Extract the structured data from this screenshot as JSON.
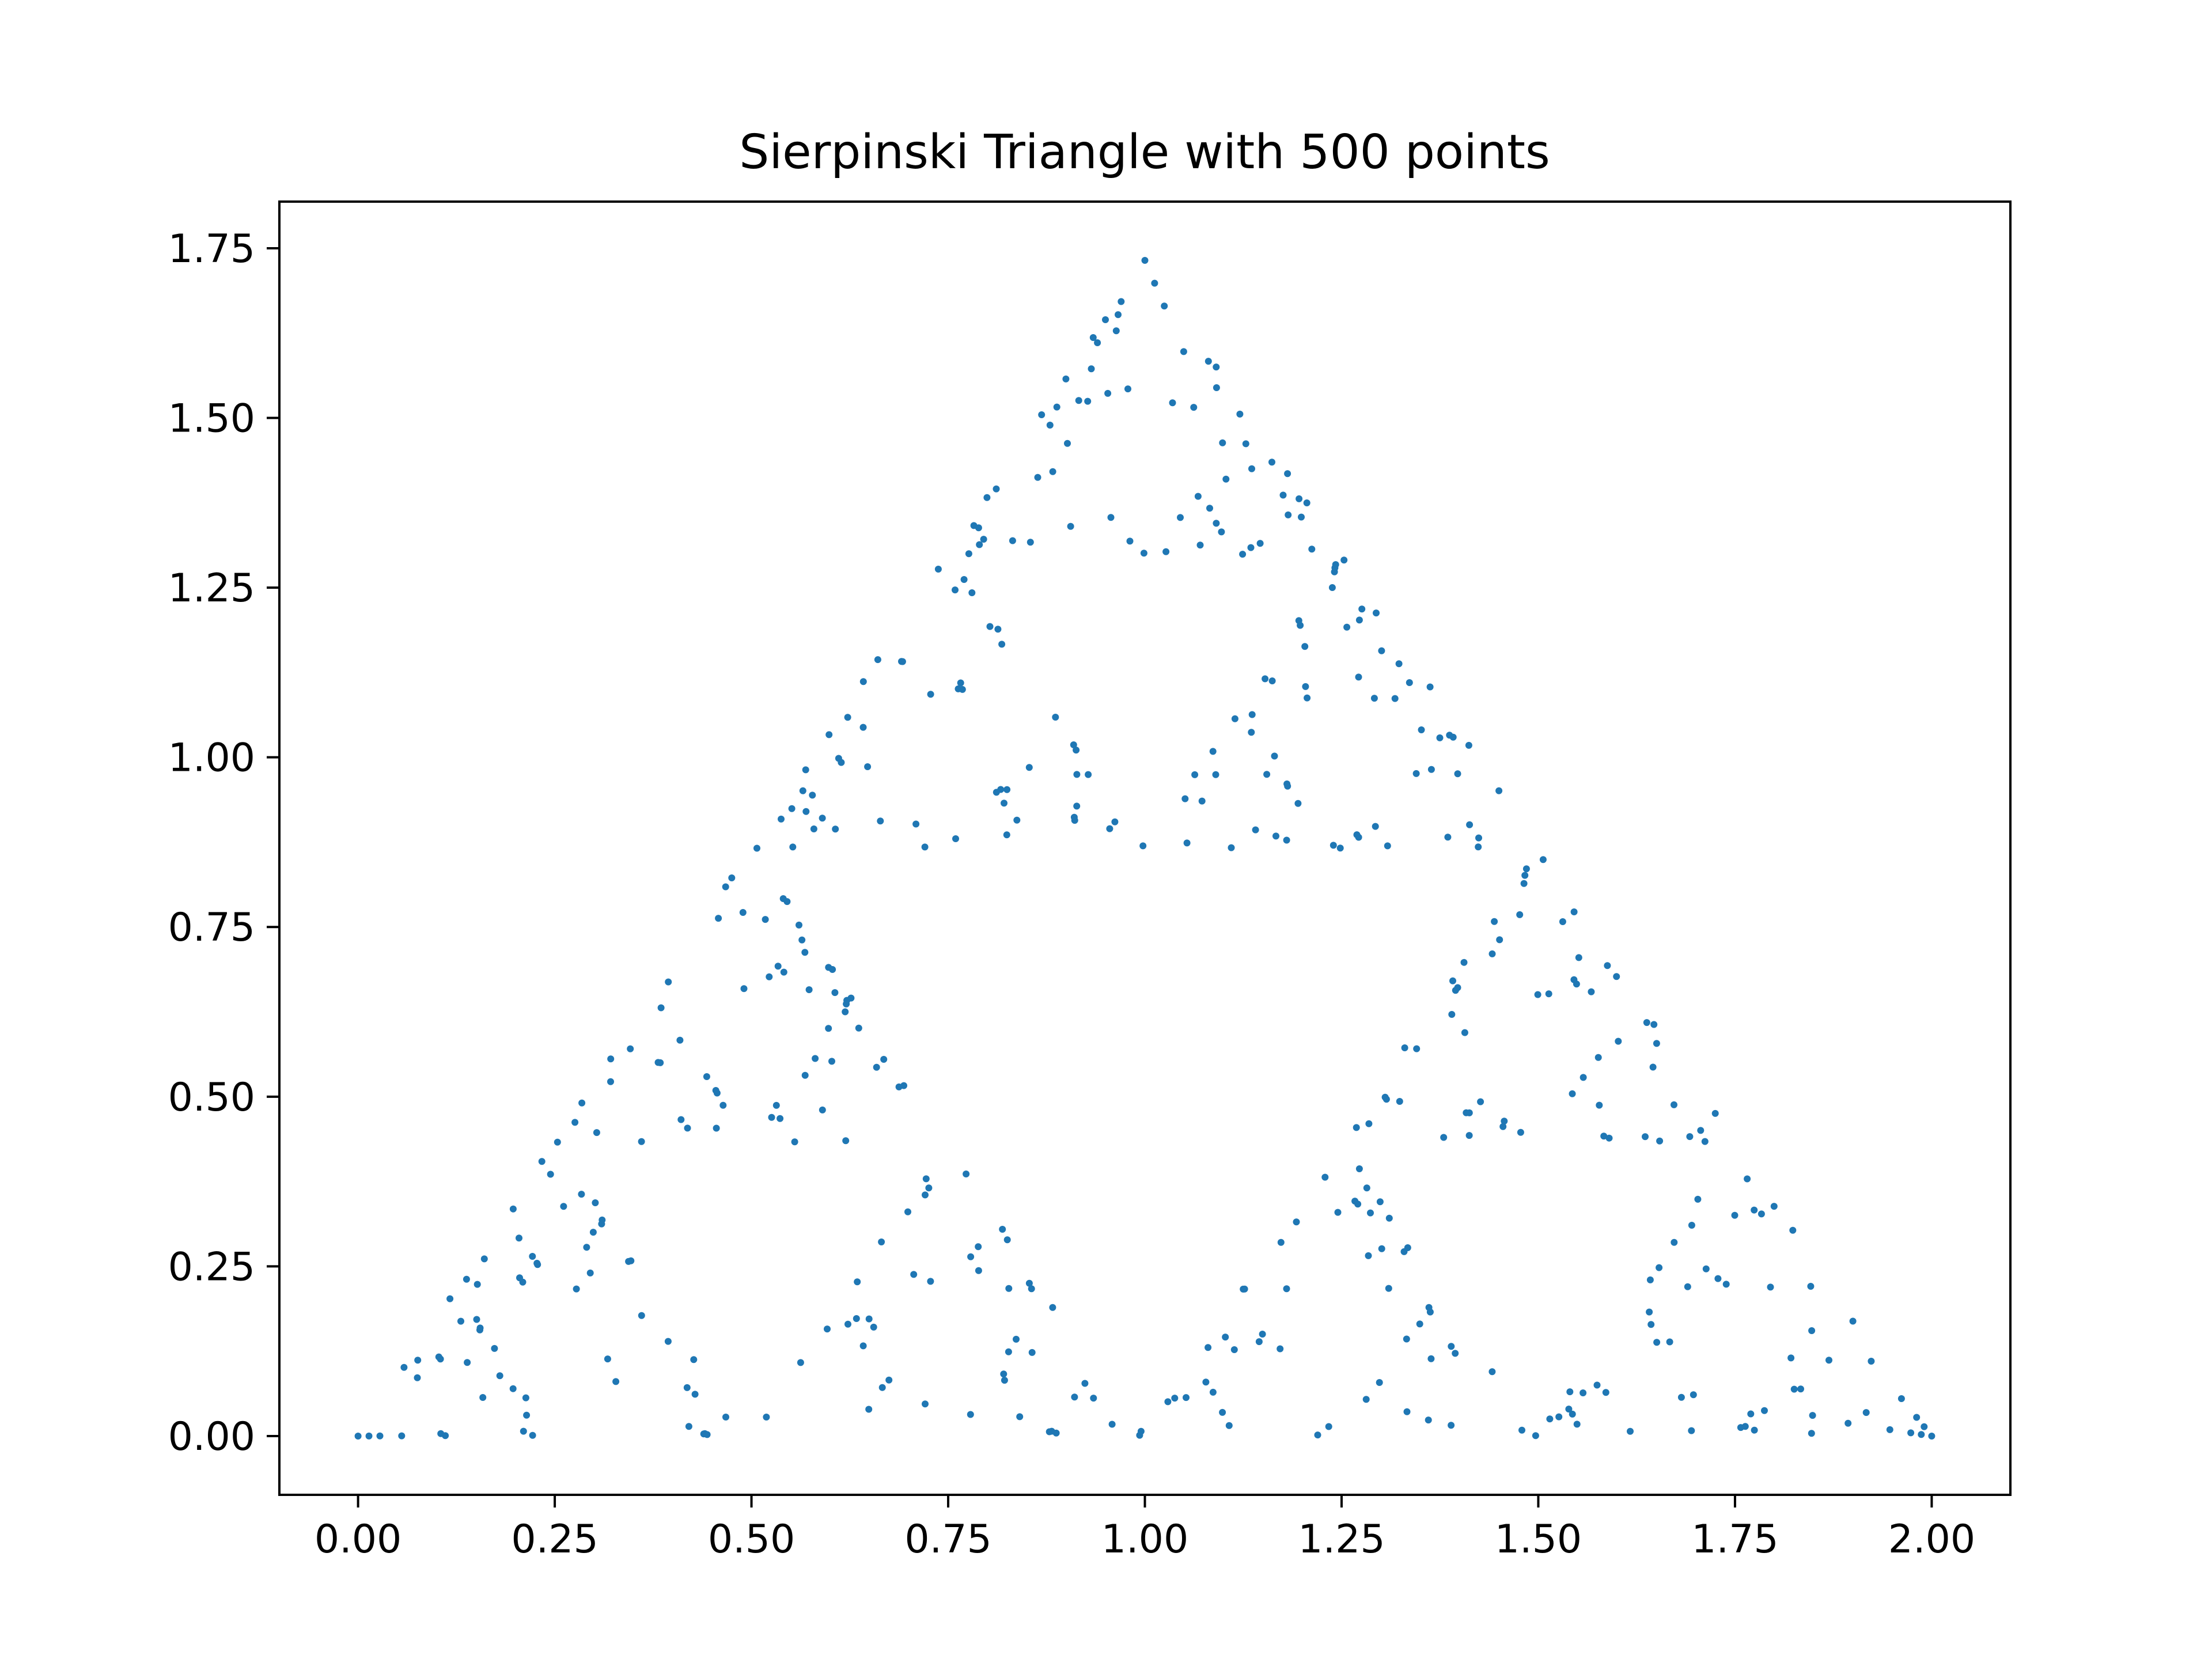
{
  "chart_data": {
    "type": "scatter",
    "title": "Sierpinski Triangle with 500 points",
    "xlabel": "",
    "ylabel": "",
    "xlim": [
      -0.1,
      2.1
    ],
    "ylim": [
      -0.0866,
      1.8187
    ],
    "x_ticks": [
      0,
      0.25,
      0.5,
      0.75,
      1,
      1.25,
      1.5,
      1.75,
      2
    ],
    "x_tick_labels": [
      "0.00",
      "0.25",
      "0.50",
      "0.75",
      "1.00",
      "1.25",
      "1.50",
      "1.75",
      "2.00"
    ],
    "y_ticks": [
      0,
      0.25,
      0.5,
      0.75,
      1,
      1.25,
      1.5,
      1.75
    ],
    "y_tick_labels": [
      "0.00",
      "0.25",
      "0.50",
      "0.75",
      "1.00",
      "1.25",
      "1.50",
      "1.75"
    ],
    "grid": false,
    "legend": "none",
    "marker_color": "#1f77b4",
    "vertices": [
      [
        0,
        0
      ],
      [
        2,
        0
      ],
      [
        1,
        1.7321
      ]
    ],
    "start": [
      0.25,
      0.433
    ],
    "n_points": 500
  }
}
